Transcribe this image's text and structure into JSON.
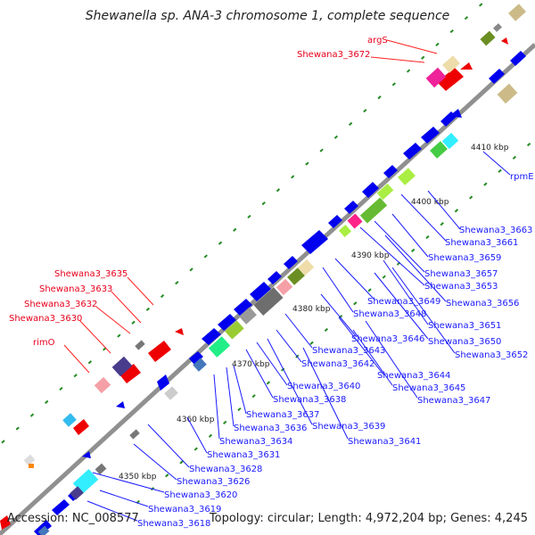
{
  "title": "Shewanella sp. ANA-3 chromosome 1, complete sequence",
  "accession": "Accession: NC_008577",
  "topology": "Topology: circular; Length: 4,972,204 bp; Genes: 4,245",
  "scale_labels": [
    {
      "text": "4350 kbp"
    },
    {
      "text": "4360 kbp"
    },
    {
      "text": "4370 kbp"
    },
    {
      "text": "4380 kbp"
    },
    {
      "text": "4390 kbp"
    },
    {
      "text": "4400 kbp"
    },
    {
      "text": "4410 kbp"
    }
  ],
  "labels_red": [
    "argS",
    "Shewana3_3672",
    "Shewana3_3635",
    "Shewana3_3633",
    "Shewana3_3632",
    "Shewana3_3630",
    "rimO"
  ],
  "labels_blue": [
    "rpmE",
    "Shewana3_3663",
    "Shewana3_3661",
    "Shewana3_3659",
    "Shewana3_3657",
    "Shewana3_3656",
    "Shewana3_3653",
    "Shewana3_3651",
    "Shewana3_3650",
    "Shewana3_3652",
    "Shewana3_3649",
    "Shewana3_3648",
    "Shewana3_3646",
    "Shewana3_3643",
    "Shewana3_3644",
    "Shewana3_3645",
    "Shewana3_3647",
    "Shewana3_3642",
    "Shewana3_3640",
    "Shewana3_3638",
    "Shewana3_3639",
    "Shewana3_3641",
    "Shewana3_3637",
    "Shewana3_3636",
    "Shewana3_3634",
    "Shewana3_3631",
    "Shewana3_3628",
    "Shewana3_3626",
    "Shewana3_3620",
    "Shewana3_3619",
    "Shewana3_3618"
  ],
  "colors": {
    "red_label": "#e8001c",
    "blue_label": "#1a1aff",
    "forward_gene": "#ff0000",
    "reverse_gene": "#0000ee",
    "backbone": "#888888",
    "tick": "#228b22"
  }
}
